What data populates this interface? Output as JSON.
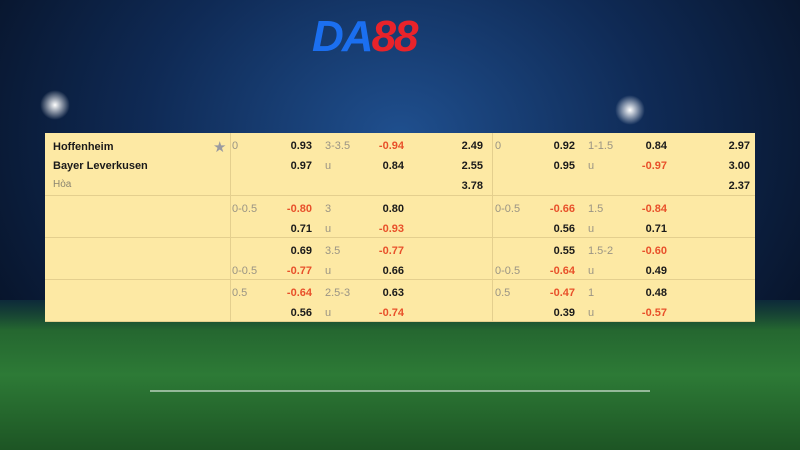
{
  "logo": {
    "part1": "DA",
    "part2": "88"
  },
  "match": {
    "home": "Hoffenheim",
    "away": "Bayer Leverkusen",
    "draw": "Hòa"
  },
  "colors": {
    "background": "#fde9a4",
    "negative": "#e8502a",
    "logo_blue": "#1b6ff0",
    "logo_red": "#e8232a"
  },
  "icons": {
    "favorite": "star-icon"
  },
  "blocks": [
    {
      "lines": [
        [
          "0",
          "0.93",
          "3-3.5",
          "-0.94",
          "2.49",
          "0",
          "0.92",
          "1-1.5",
          "0.84",
          "2.97"
        ],
        [
          "",
          "0.97",
          "u",
          "0.84",
          "2.55",
          "",
          "0.95",
          "u",
          "-0.97",
          "3.00"
        ],
        [
          "",
          "",
          "",
          "",
          "3.78",
          "",
          "",
          "",
          "",
          "2.37"
        ]
      ]
    },
    {
      "lines": [
        [
          "0-0.5",
          "-0.80",
          "3",
          "0.80",
          "",
          "0-0.5",
          "-0.66",
          "1.5",
          "-0.84",
          ""
        ],
        [
          "",
          "0.71",
          "u",
          "-0.93",
          "",
          "",
          "0.56",
          "u",
          "0.71",
          ""
        ]
      ]
    },
    {
      "lines": [
        [
          "",
          "0.69",
          "3.5",
          "-0.77",
          "",
          "",
          "0.55",
          "1.5-2",
          "-0.60",
          ""
        ],
        [
          "0-0.5",
          "-0.77",
          "u",
          "0.66",
          "",
          "0-0.5",
          "-0.64",
          "u",
          "0.49",
          ""
        ]
      ]
    },
    {
      "lines": [
        [
          "0.5",
          "-0.64",
          "2.5-3",
          "0.63",
          "",
          "0.5",
          "-0.47",
          "1",
          "0.48",
          ""
        ],
        [
          "",
          "0.56",
          "u",
          "-0.74",
          "",
          "",
          "0.39",
          "u",
          "-0.57",
          ""
        ]
      ]
    }
  ]
}
